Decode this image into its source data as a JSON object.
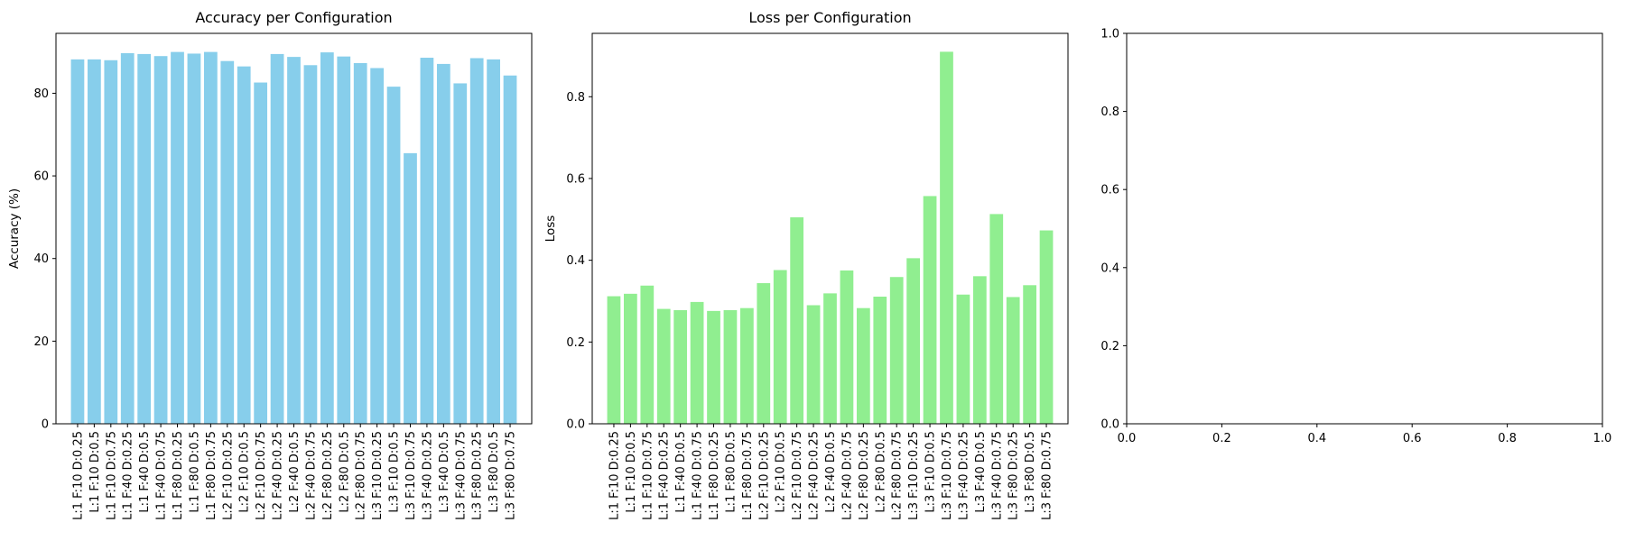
{
  "configurations": [
    "L:1 F:10 D:0.25",
    "L:1 F:10 D:0.5",
    "L:1 F:10 D:0.75",
    "L:1 F:40 D:0.25",
    "L:1 F:40 D:0.5",
    "L:1 F:40 D:0.75",
    "L:1 F:80 D:0.25",
    "L:1 F:80 D:0.5",
    "L:1 F:80 D:0.75",
    "L:2 F:10 D:0.25",
    "L:2 F:10 D:0.5",
    "L:2 F:10 D:0.75",
    "L:2 F:40 D:0.25",
    "L:2 F:40 D:0.5",
    "L:2 F:40 D:0.75",
    "L:2 F:80 D:0.25",
    "L:2 F:80 D:0.5",
    "L:2 F:80 D:0.75",
    "L:3 F:10 D:0.25",
    "L:3 F:10 D:0.5",
    "L:3 F:10 D:0.75",
    "L:3 F:40 D:0.25",
    "L:3 F:40 D:0.5",
    "L:3 F:40 D:0.75",
    "L:3 F:80 D:0.25",
    "L:3 F:80 D:0.5",
    "L:3 F:80 D:0.75"
  ],
  "chart_data": [
    {
      "type": "bar",
      "title": "Accuracy per Configuration",
      "xlabel": "",
      "ylabel": "Accuracy (%)",
      "color": "#87CEEB",
      "ylim": [
        0,
        94.5
      ],
      "yticks": [
        0,
        20,
        40,
        60,
        80
      ],
      "ytick_labels": [
        "0",
        "20",
        "40",
        "60",
        "80"
      ],
      "grid": false,
      "values": [
        88.2,
        88.2,
        88.0,
        89.7,
        89.5,
        89.0,
        90.0,
        89.6,
        90.0,
        87.8,
        86.5,
        82.6,
        89.5,
        88.8,
        86.8,
        89.9,
        88.9,
        87.3,
        86.1,
        81.6,
        65.5,
        88.6,
        87.1,
        82.4,
        88.5,
        88.2,
        84.3
      ]
    },
    {
      "type": "bar",
      "title": "Loss per Configuration",
      "xlabel": "",
      "ylabel": "Loss",
      "color": "#90EE90",
      "ylim": [
        0,
        0.955
      ],
      "yticks": [
        0,
        0.2,
        0.4,
        0.6,
        0.8
      ],
      "ytick_labels": [
        "0.0",
        "0.2",
        "0.4",
        "0.6",
        "0.8"
      ],
      "grid": false,
      "values": [
        0.312,
        0.318,
        0.338,
        0.281,
        0.278,
        0.298,
        0.276,
        0.278,
        0.283,
        0.344,
        0.376,
        0.505,
        0.29,
        0.319,
        0.375,
        0.283,
        0.311,
        0.359,
        0.405,
        0.557,
        0.91,
        0.316,
        0.361,
        0.513,
        0.31,
        0.339,
        0.473
      ]
    },
    {
      "type": "bar",
      "title": "",
      "xlabel": "",
      "ylabel": "",
      "xlim": [
        0,
        1
      ],
      "ylim": [
        0,
        1
      ],
      "xticks": [
        0,
        0.2,
        0.4,
        0.6,
        0.8,
        1.0
      ],
      "xtick_labels": [
        "0.0",
        "0.2",
        "0.4",
        "0.6",
        "0.8",
        "1.0"
      ],
      "yticks": [
        0,
        0.2,
        0.4,
        0.6,
        0.8,
        1.0
      ],
      "ytick_labels": [
        "0.0",
        "0.2",
        "0.4",
        "0.6",
        "0.8",
        "1.0"
      ],
      "grid": false,
      "values": []
    }
  ]
}
